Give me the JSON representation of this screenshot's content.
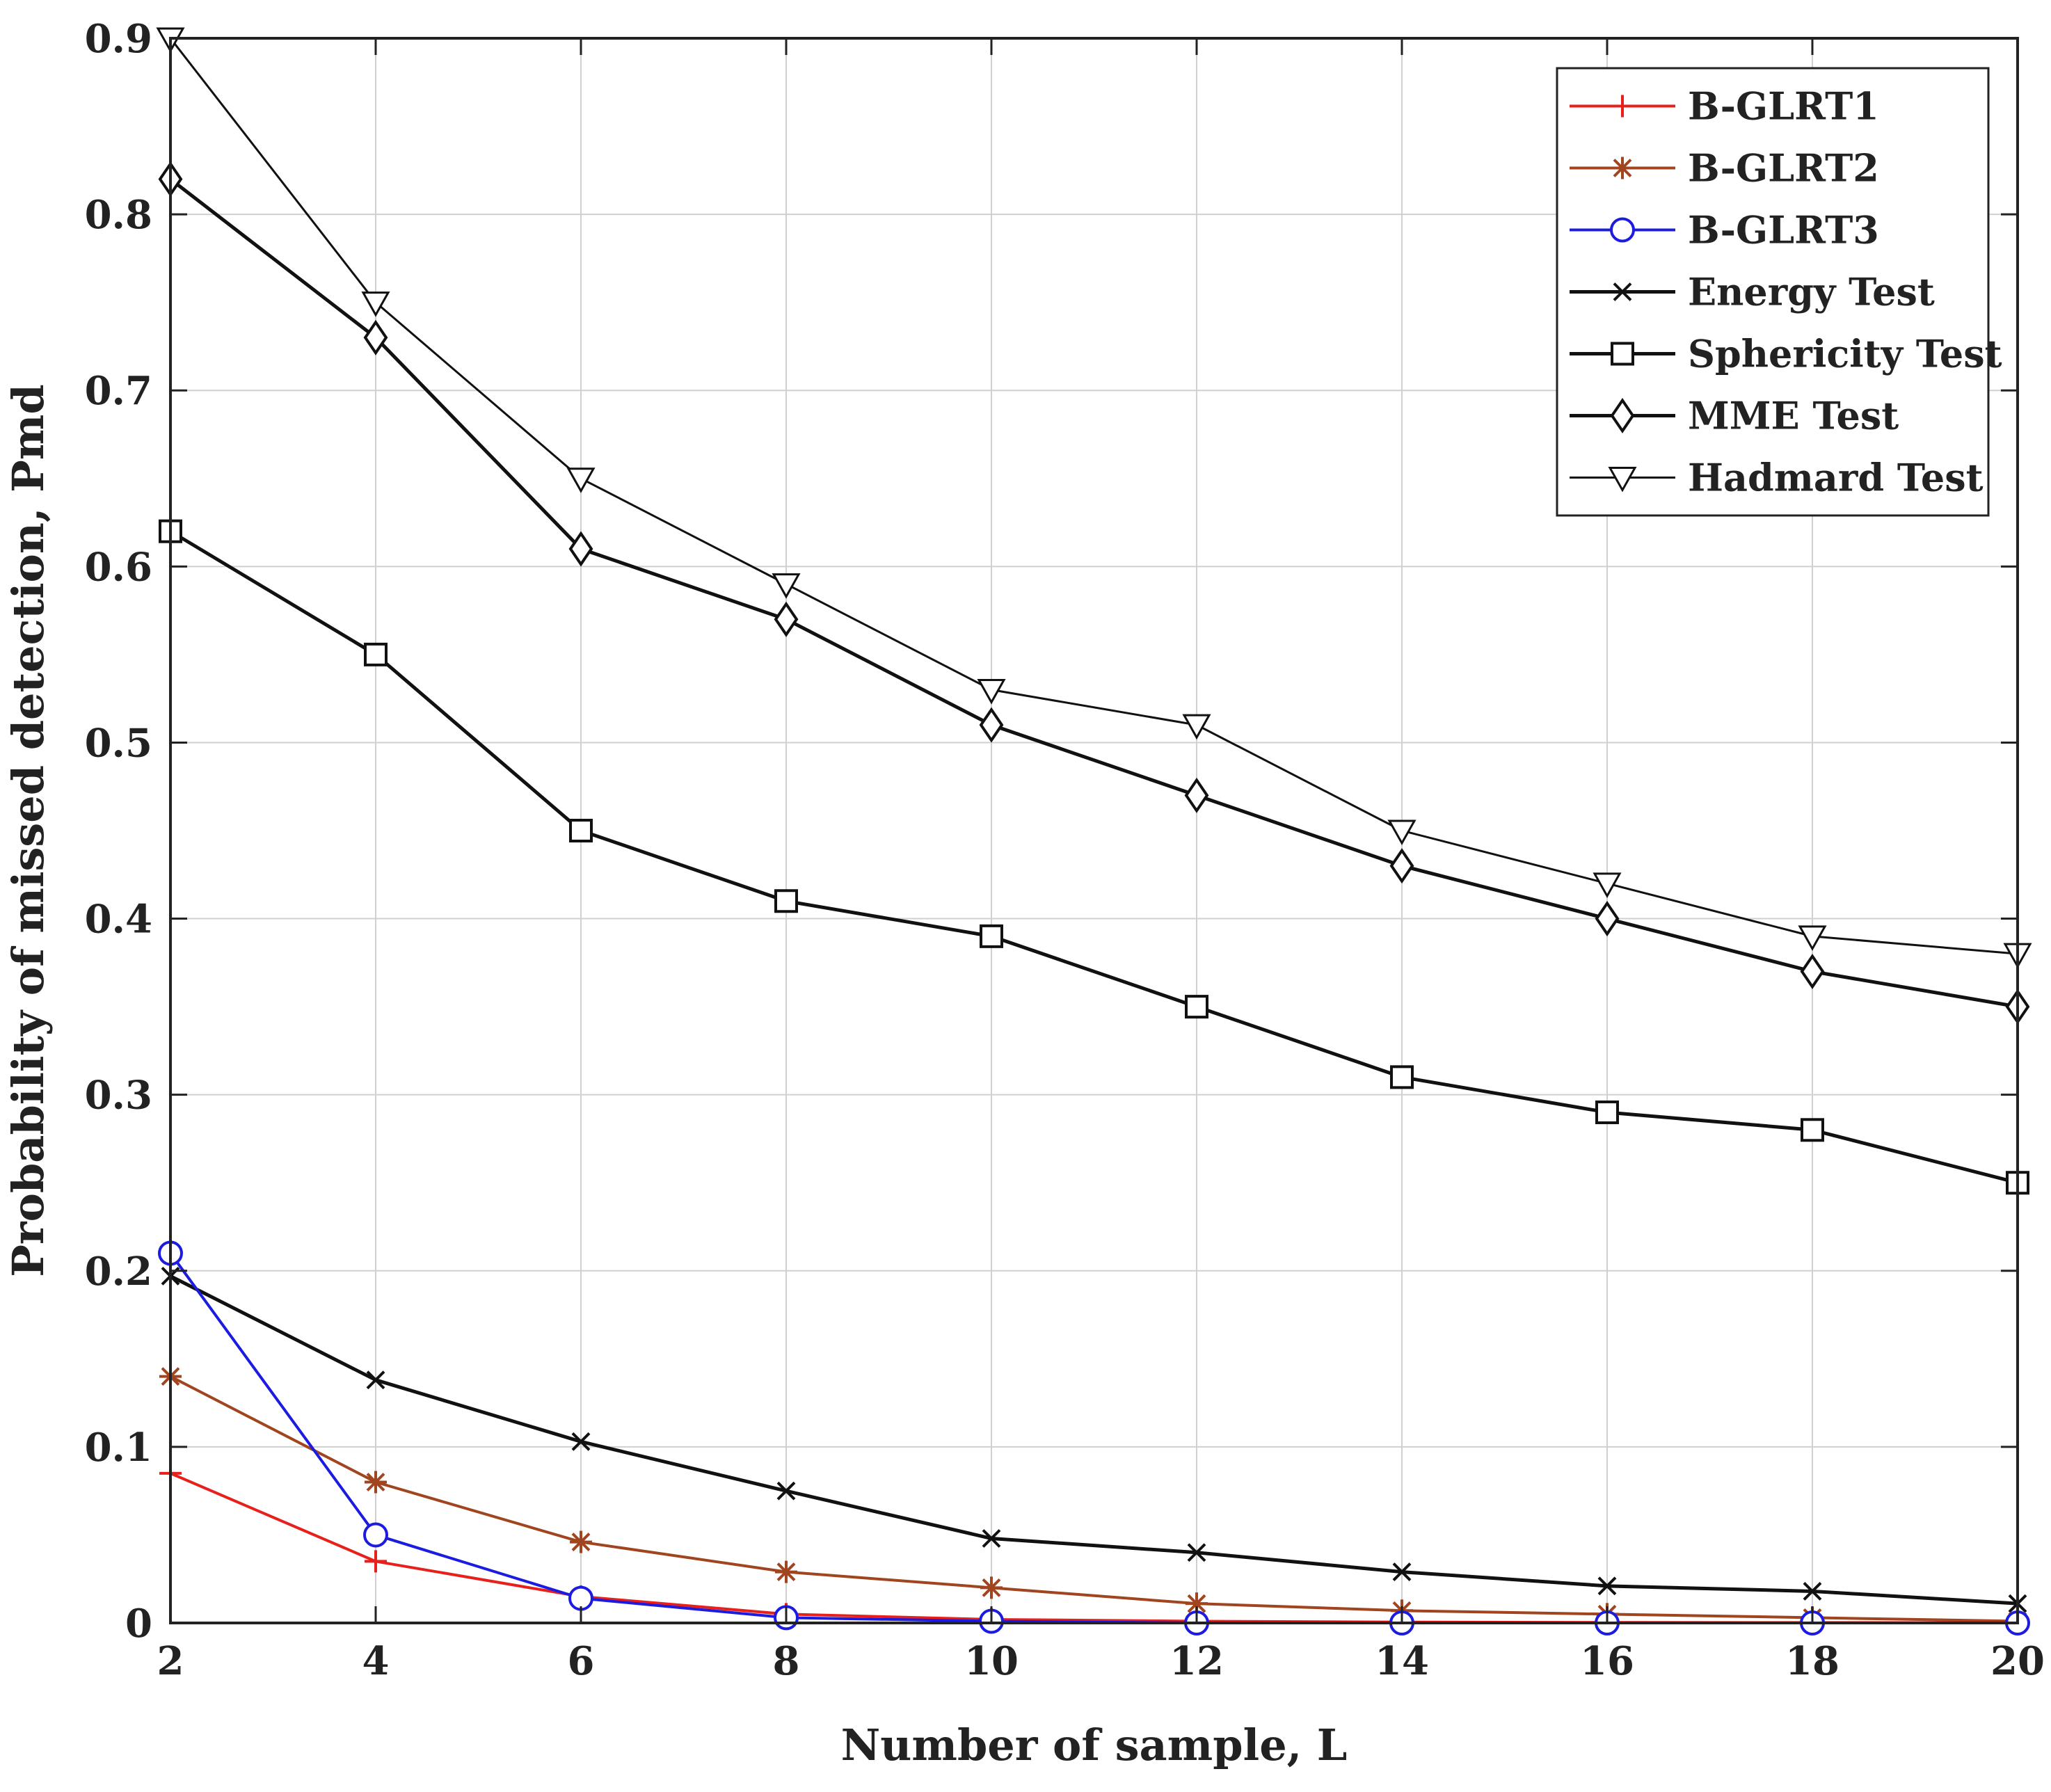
{
  "chart_data": {
    "type": "line",
    "title": "",
    "xlabel": "Number of sample, L",
    "ylabel": "Probability of missed detection, Pmd",
    "x": [
      2,
      4,
      6,
      8,
      10,
      12,
      14,
      16,
      18,
      20
    ],
    "xlim": [
      2,
      20
    ],
    "ylim": [
      0,
      0.9
    ],
    "xticks": [
      "2",
      "4",
      "6",
      "8",
      "10",
      "12",
      "14",
      "16",
      "18",
      "20"
    ],
    "yticks": [
      "0",
      "0.1",
      "0.2",
      "0.3",
      "0.4",
      "0.5",
      "0.6",
      "0.7",
      "0.8",
      "0.9"
    ],
    "grid": true,
    "legend_position": "top-right",
    "series": [
      {
        "name": "B-GLRT1",
        "color": "#e8201c",
        "marker": "plus",
        "line_width": 4,
        "values": [
          0.085,
          0.035,
          0.015,
          0.005,
          0.002,
          0.001,
          0.0005,
          0.0003,
          0.0002,
          0.0001
        ]
      },
      {
        "name": "B-GLRT2",
        "color": "#a0451f",
        "marker": "star",
        "line_width": 4,
        "values": [
          0.14,
          0.08,
          0.046,
          0.029,
          0.02,
          0.011,
          0.007,
          0.005,
          0.003,
          0.001
        ]
      },
      {
        "name": "B-GLRT3",
        "color": "#1c1ce0",
        "marker": "circle",
        "line_width": 4,
        "values": [
          0.21,
          0.05,
          0.014,
          0.003,
          0.001,
          0.0,
          0.0,
          0.0,
          0.0,
          0.0
        ]
      },
      {
        "name": "Energy Test",
        "color": "#111111",
        "marker": "x",
        "line_width": 5,
        "values": [
          0.197,
          0.138,
          0.103,
          0.075,
          0.048,
          0.04,
          0.029,
          0.021,
          0.018,
          0.011
        ]
      },
      {
        "name": "Sphericity Test",
        "color": "#111111",
        "marker": "square",
        "line_width": 5,
        "values": [
          0.62,
          0.55,
          0.45,
          0.41,
          0.39,
          0.35,
          0.31,
          0.29,
          0.28,
          0.25
        ]
      },
      {
        "name": "MME Test",
        "color": "#111111",
        "marker": "diamond",
        "line_width": 5,
        "values": [
          0.82,
          0.73,
          0.61,
          0.57,
          0.51,
          0.47,
          0.43,
          0.4,
          0.37,
          0.35
        ]
      },
      {
        "name": "Hadmard Test",
        "color": "#111111",
        "marker": "triangle-down",
        "line_width": 3,
        "values": [
          0.9,
          0.75,
          0.65,
          0.59,
          0.53,
          0.51,
          0.45,
          0.42,
          0.39,
          0.38
        ]
      }
    ]
  }
}
